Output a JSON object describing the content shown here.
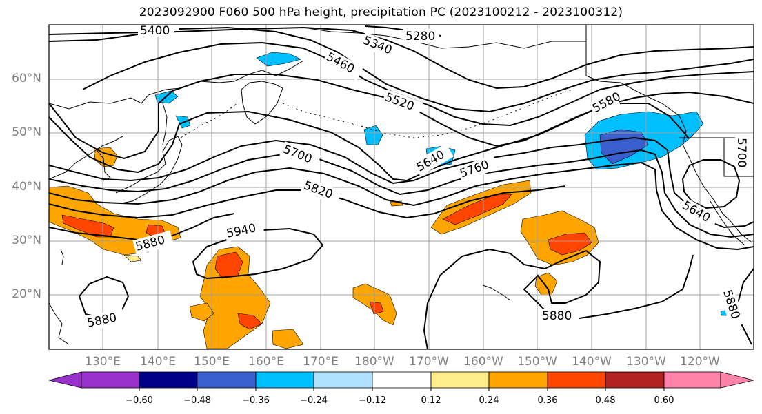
{
  "title": "2023092900 F060 500 hPa height, precipitation PC (2023100212 - 2023100312)",
  "latitude_labels": [
    "60°N",
    "50°N",
    "40°N",
    "30°N",
    "20°N"
  ],
  "longitude_labels": [
    "130°E",
    "140°E",
    "150°E",
    "160°E",
    "170°E",
    "180°W",
    "170°W",
    "160°W",
    "150°W",
    "140°W",
    "130°W",
    "120°W"
  ],
  "contour_labels": [
    "5400",
    "5280",
    "5340",
    "5460",
    "5520",
    "5580",
    "5640",
    "5700",
    "5760",
    "5820",
    "5940",
    "5880",
    "5880",
    "5880",
    "5880",
    "5640",
    "5700"
  ],
  "colorbar": {
    "tick_labels": [
      "−0.60",
      "−0.48",
      "−0.36",
      "−0.24",
      "−0.12",
      "0.12",
      "0.24",
      "0.36",
      "0.48",
      "0.60"
    ],
    "colors": [
      "#9932cc",
      "#00008b",
      "#3a5fcd",
      "#00bfff",
      "#b0e2ff",
      "#ffffff",
      "#ffec8b",
      "#ffa500",
      "#ff4500",
      "#b22222",
      "#ff82ab"
    ]
  },
  "colors": {
    "contour": "#000000",
    "coast": "#000000",
    "grid": "#a0a0a0",
    "label_gray": "#808080"
  }
}
